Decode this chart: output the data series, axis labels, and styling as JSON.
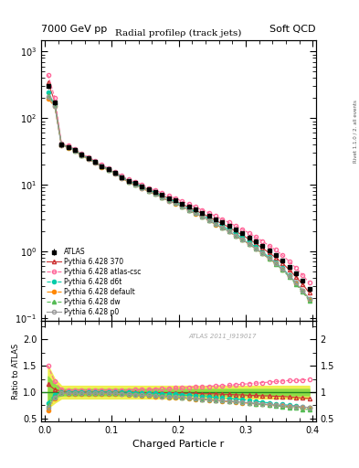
{
  "title": "Radial profileρ (track jets)",
  "header_left": "7000 GeV pp",
  "header_right": "Soft QCD",
  "footer_label": "ATLAS 2011_I919017",
  "right_label": "Rivet 1.1.0 / 2. all events",
  "xlabel": "Charged Particle r",
  "ylabel_ratio": "Ratio to ATLAS",
  "xlim": [
    -0.005,
    0.405
  ],
  "ylim_main": [
    0.09,
    1500
  ],
  "ylim_ratio": [
    0.45,
    2.35
  ],
  "x": [
    0.005,
    0.015,
    0.025,
    0.035,
    0.045,
    0.055,
    0.065,
    0.075,
    0.085,
    0.095,
    0.105,
    0.115,
    0.125,
    0.135,
    0.145,
    0.155,
    0.165,
    0.175,
    0.185,
    0.195,
    0.205,
    0.215,
    0.225,
    0.235,
    0.245,
    0.255,
    0.265,
    0.275,
    0.285,
    0.295,
    0.305,
    0.315,
    0.325,
    0.335,
    0.345,
    0.355,
    0.365,
    0.375,
    0.385,
    0.395
  ],
  "atlas_y": [
    300,
    170,
    40,
    37,
    33,
    28,
    25,
    22,
    19,
    17,
    15,
    13,
    11.5,
    10.5,
    9.5,
    8.5,
    7.8,
    7.0,
    6.3,
    5.8,
    5.2,
    4.7,
    4.2,
    3.8,
    3.4,
    3.0,
    2.7,
    2.4,
    2.1,
    1.85,
    1.62,
    1.4,
    1.2,
    1.02,
    0.87,
    0.72,
    0.58,
    0.46,
    0.36,
    0.27
  ],
  "atlas_yerr": [
    20,
    12,
    3,
    2.5,
    2,
    1.8,
    1.5,
    1.3,
    1.2,
    1.0,
    0.9,
    0.8,
    0.7,
    0.65,
    0.6,
    0.55,
    0.5,
    0.45,
    0.4,
    0.37,
    0.33,
    0.3,
    0.27,
    0.24,
    0.22,
    0.2,
    0.18,
    0.16,
    0.14,
    0.12,
    0.11,
    0.09,
    0.08,
    0.07,
    0.06,
    0.05,
    0.04,
    0.03,
    0.025,
    0.02
  ],
  "series": [
    {
      "name": "Pythia 6.428 370",
      "color": "#cc3333",
      "linestyle": "-",
      "marker": "^",
      "fillstyle": "none",
      "markersize": 3,
      "ratio_y": [
        1.15,
        1.05,
        1.02,
        1.01,
        1.0,
        1.0,
        1.0,
        1.0,
        1.0,
        1.0,
        1.0,
        1.0,
        1.0,
        1.0,
        0.99,
        0.99,
        0.99,
        0.99,
        0.99,
        0.99,
        0.98,
        0.98,
        0.98,
        0.97,
        0.97,
        0.97,
        0.96,
        0.96,
        0.95,
        0.95,
        0.94,
        0.94,
        0.93,
        0.93,
        0.92,
        0.92,
        0.91,
        0.9,
        0.89,
        0.88
      ]
    },
    {
      "name": "Pythia 6.428 atlas-csc",
      "color": "#ff6699",
      "linestyle": "--",
      "marker": "o",
      "fillstyle": "none",
      "markersize": 3,
      "ratio_y": [
        1.5,
        1.2,
        1.05,
        1.04,
        1.04,
        1.04,
        1.04,
        1.04,
        1.04,
        1.04,
        1.04,
        1.04,
        1.04,
        1.05,
        1.05,
        1.05,
        1.06,
        1.07,
        1.07,
        1.08,
        1.08,
        1.09,
        1.1,
        1.1,
        1.11,
        1.12,
        1.12,
        1.13,
        1.14,
        1.15,
        1.16,
        1.17,
        1.18,
        1.19,
        1.2,
        1.21,
        1.22,
        1.22,
        1.23,
        1.24
      ]
    },
    {
      "name": "Pythia 6.428 d6t",
      "color": "#00ccaa",
      "linestyle": "--",
      "marker": "o",
      "fillstyle": "full",
      "markersize": 3,
      "ratio_y": [
        0.8,
        0.95,
        1.0,
        1.0,
        1.0,
        1.0,
        1.0,
        1.0,
        1.0,
        1.0,
        1.0,
        1.0,
        1.0,
        0.99,
        0.99,
        0.98,
        0.98,
        0.97,
        0.97,
        0.96,
        0.95,
        0.94,
        0.93,
        0.92,
        0.91,
        0.9,
        0.89,
        0.88,
        0.87,
        0.86,
        0.84,
        0.83,
        0.81,
        0.8,
        0.78,
        0.77,
        0.75,
        0.74,
        0.72,
        0.71
      ]
    },
    {
      "name": "Pythia 6.428 default",
      "color": "#ff8800",
      "linestyle": "-.",
      "marker": "o",
      "fillstyle": "full",
      "markersize": 3,
      "ratio_y": [
        0.65,
        0.88,
        0.98,
        0.97,
        0.97,
        0.97,
        0.97,
        0.97,
        0.97,
        0.97,
        0.97,
        0.96,
        0.95,
        0.94,
        0.93,
        0.93,
        0.92,
        0.91,
        0.9,
        0.9,
        0.89,
        0.88,
        0.87,
        0.86,
        0.85,
        0.84,
        0.83,
        0.82,
        0.81,
        0.8,
        0.79,
        0.78,
        0.77,
        0.76,
        0.75,
        0.74,
        0.73,
        0.72,
        0.71,
        0.7
      ]
    },
    {
      "name": "Pythia 6.428 dw",
      "color": "#55bb55",
      "linestyle": "--",
      "marker": "^",
      "fillstyle": "full",
      "markersize": 3,
      "ratio_y": [
        0.75,
        0.92,
        0.99,
        0.99,
        0.99,
        0.99,
        0.99,
        0.99,
        0.99,
        0.99,
        0.99,
        0.98,
        0.97,
        0.96,
        0.95,
        0.95,
        0.94,
        0.93,
        0.92,
        0.91,
        0.9,
        0.89,
        0.88,
        0.87,
        0.86,
        0.85,
        0.84,
        0.83,
        0.82,
        0.81,
        0.8,
        0.78,
        0.77,
        0.76,
        0.74,
        0.73,
        0.71,
        0.7,
        0.68,
        0.67
      ]
    },
    {
      "name": "Pythia 6.428 p0",
      "color": "#999999",
      "linestyle": "-",
      "marker": "o",
      "fillstyle": "none",
      "markersize": 3,
      "ratio_y": [
        0.7,
        0.9,
        0.98,
        0.98,
        0.98,
        0.98,
        0.98,
        0.98,
        0.98,
        0.98,
        0.98,
        0.97,
        0.96,
        0.95,
        0.94,
        0.94,
        0.93,
        0.92,
        0.91,
        0.91,
        0.9,
        0.89,
        0.88,
        0.87,
        0.86,
        0.85,
        0.84,
        0.83,
        0.82,
        0.81,
        0.8,
        0.79,
        0.78,
        0.77,
        0.76,
        0.75,
        0.74,
        0.73,
        0.72,
        0.71
      ]
    }
  ],
  "band_color_yellow": "#eeee44",
  "band_color_green": "#88dd44",
  "band_yellow_low": [
    0.7,
    0.8,
    0.88,
    0.88,
    0.88,
    0.88,
    0.88,
    0.88,
    0.88,
    0.88,
    0.88,
    0.88,
    0.88,
    0.88,
    0.88,
    0.88,
    0.88,
    0.88,
    0.88,
    0.88,
    0.88,
    0.88,
    0.88,
    0.88,
    0.88,
    0.88,
    0.88,
    0.88,
    0.88,
    0.88,
    0.88,
    0.88,
    0.88,
    0.88,
    0.88,
    0.88,
    0.88,
    0.88,
    0.88,
    0.88
  ],
  "band_yellow_high": [
    1.5,
    1.25,
    1.12,
    1.12,
    1.12,
    1.12,
    1.12,
    1.12,
    1.12,
    1.12,
    1.12,
    1.12,
    1.12,
    1.12,
    1.12,
    1.12,
    1.12,
    1.12,
    1.12,
    1.12,
    1.12,
    1.12,
    1.12,
    1.12,
    1.12,
    1.12,
    1.12,
    1.12,
    1.12,
    1.12,
    1.12,
    1.12,
    1.12,
    1.12,
    1.12,
    1.12,
    1.12,
    1.12,
    1.12,
    1.12
  ],
  "band_green_low": [
    0.82,
    0.9,
    0.94,
    0.94,
    0.94,
    0.94,
    0.94,
    0.94,
    0.94,
    0.94,
    0.94,
    0.94,
    0.94,
    0.94,
    0.94,
    0.94,
    0.94,
    0.94,
    0.94,
    0.94,
    0.94,
    0.94,
    0.94,
    0.94,
    0.94,
    0.94,
    0.94,
    0.94,
    0.94,
    0.94,
    0.94,
    0.94,
    0.94,
    0.94,
    0.94,
    0.94,
    0.94,
    0.94,
    0.94,
    0.94
  ],
  "band_green_high": [
    1.3,
    1.15,
    1.06,
    1.06,
    1.06,
    1.06,
    1.06,
    1.06,
    1.06,
    1.06,
    1.06,
    1.06,
    1.06,
    1.06,
    1.06,
    1.06,
    1.06,
    1.06,
    1.06,
    1.06,
    1.06,
    1.06,
    1.06,
    1.06,
    1.06,
    1.06,
    1.06,
    1.06,
    1.06,
    1.06,
    1.06,
    1.06,
    1.06,
    1.06,
    1.06,
    1.06,
    1.06,
    1.06,
    1.06,
    1.06
  ]
}
